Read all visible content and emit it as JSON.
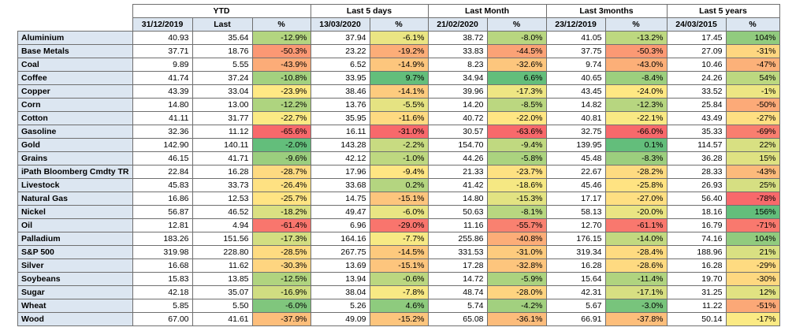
{
  "groups": [
    "YTD",
    "Last 5 days",
    "Last Month",
    "Last 3months",
    "Last 5 years"
  ],
  "subheaders": [
    "31/12/2019",
    "Last",
    "%",
    "13/03/2020",
    "%",
    "21/02/2020",
    "%",
    "23/12/2019",
    "%",
    "24/03/2015",
    "%"
  ],
  "rows": [
    {
      "name": "Aluminium",
      "ytd_base": "40.93",
      "last": "35.64",
      "ytd_pct": "-12.9%",
      "d5_base": "37.94",
      "d5_pct": "-6.1%",
      "m_base": "38.72",
      "m_pct": "-8.0%",
      "m3_base": "41.05",
      "m3_pct": "-13.2%",
      "y5_base": "17.45",
      "y5_pct": "104%"
    },
    {
      "name": "Base Metals",
      "ytd_base": "37.71",
      "last": "18.76",
      "ytd_pct": "-50.3%",
      "d5_base": "23.22",
      "d5_pct": "-19.2%",
      "m_base": "33.83",
      "m_pct": "-44.5%",
      "m3_base": "37.75",
      "m3_pct": "-50.3%",
      "y5_base": "27.09",
      "y5_pct": "-31%"
    },
    {
      "name": "Coal",
      "ytd_base": "9.89",
      "last": "5.55",
      "ytd_pct": "-43.9%",
      "d5_base": "6.52",
      "d5_pct": "-14.9%",
      "m_base": "8.23",
      "m_pct": "-32.6%",
      "m3_base": "9.74",
      "m3_pct": "-43.0%",
      "y5_base": "10.46",
      "y5_pct": "-47%"
    },
    {
      "name": "Coffee",
      "ytd_base": "41.74",
      "last": "37.24",
      "ytd_pct": "-10.8%",
      "d5_base": "33.95",
      "d5_pct": "9.7%",
      "m_base": "34.94",
      "m_pct": "6.6%",
      "m3_base": "40.65",
      "m3_pct": "-8.4%",
      "y5_base": "24.26",
      "y5_pct": "54%"
    },
    {
      "name": "Copper",
      "ytd_base": "43.39",
      "last": "33.04",
      "ytd_pct": "-23.9%",
      "d5_base": "38.46",
      "d5_pct": "-14.1%",
      "m_base": "39.96",
      "m_pct": "-17.3%",
      "m3_base": "43.45",
      "m3_pct": "-24.0%",
      "y5_base": "33.52",
      "y5_pct": "-1%"
    },
    {
      "name": "Corn",
      "ytd_base": "14.80",
      "last": "13.00",
      "ytd_pct": "-12.2%",
      "d5_base": "13.76",
      "d5_pct": "-5.5%",
      "m_base": "14.20",
      "m_pct": "-8.5%",
      "m3_base": "14.82",
      "m3_pct": "-12.3%",
      "y5_base": "25.84",
      "y5_pct": "-50%"
    },
    {
      "name": "Cotton",
      "ytd_base": "41.11",
      "last": "31.77",
      "ytd_pct": "-22.7%",
      "d5_base": "35.95",
      "d5_pct": "-11.6%",
      "m_base": "40.72",
      "m_pct": "-22.0%",
      "m3_base": "40.81",
      "m3_pct": "-22.1%",
      "y5_base": "43.49",
      "y5_pct": "-27%"
    },
    {
      "name": "Gasoline",
      "ytd_base": "32.36",
      "last": "11.12",
      "ytd_pct": "-65.6%",
      "d5_base": "16.11",
      "d5_pct": "-31.0%",
      "m_base": "30.57",
      "m_pct": "-63.6%",
      "m3_base": "32.75",
      "m3_pct": "-66.0%",
      "y5_base": "35.33",
      "y5_pct": "-69%"
    },
    {
      "name": "Gold",
      "ytd_base": "142.90",
      "last": "140.11",
      "ytd_pct": "-2.0%",
      "d5_base": "143.28",
      "d5_pct": "-2.2%",
      "m_base": "154.70",
      "m_pct": "-9.4%",
      "m3_base": "139.95",
      "m3_pct": "0.1%",
      "y5_base": "114.57",
      "y5_pct": "22%"
    },
    {
      "name": "Grains",
      "ytd_base": "46.15",
      "last": "41.71",
      "ytd_pct": "-9.6%",
      "d5_base": "42.12",
      "d5_pct": "-1.0%",
      "m_base": "44.26",
      "m_pct": "-5.8%",
      "m3_base": "45.48",
      "m3_pct": "-8.3%",
      "y5_base": "36.28",
      "y5_pct": "15%"
    },
    {
      "name": "iPath Bloomberg Cmdty TR",
      "ytd_base": "22.84",
      "last": "16.28",
      "ytd_pct": "-28.7%",
      "d5_base": "17.96",
      "d5_pct": "-9.4%",
      "m_base": "21.33",
      "m_pct": "-23.7%",
      "m3_base": "22.67",
      "m3_pct": "-28.2%",
      "y5_base": "28.33",
      "y5_pct": "-43%"
    },
    {
      "name": "Livestock",
      "ytd_base": "45.83",
      "last": "33.73",
      "ytd_pct": "-26.4%",
      "d5_base": "33.68",
      "d5_pct": "0.2%",
      "m_base": "41.42",
      "m_pct": "-18.6%",
      "m3_base": "45.46",
      "m3_pct": "-25.8%",
      "y5_base": "26.93",
      "y5_pct": "25%"
    },
    {
      "name": "Natural Gas",
      "ytd_base": "16.86",
      "last": "12.53",
      "ytd_pct": "-25.7%",
      "d5_base": "14.75",
      "d5_pct": "-15.1%",
      "m_base": "14.80",
      "m_pct": "-15.3%",
      "m3_base": "17.17",
      "m3_pct": "-27.0%",
      "y5_base": "56.40",
      "y5_pct": "-78%"
    },
    {
      "name": "Nickel",
      "ytd_base": "56.87",
      "last": "46.52",
      "ytd_pct": "-18.2%",
      "d5_base": "49.47",
      "d5_pct": "-6.0%",
      "m_base": "50.63",
      "m_pct": "-8.1%",
      "m3_base": "58.13",
      "m3_pct": "-20.0%",
      "y5_base": "18.16",
      "y5_pct": "156%"
    },
    {
      "name": "Oil",
      "ytd_base": "12.81",
      "last": "4.94",
      "ytd_pct": "-61.4%",
      "d5_base": "6.96",
      "d5_pct": "-29.0%",
      "m_base": "11.16",
      "m_pct": "-55.7%",
      "m3_base": "12.70",
      "m3_pct": "-61.1%",
      "y5_base": "16.79",
      "y5_pct": "-71%"
    },
    {
      "name": "Palladium",
      "ytd_base": "183.26",
      "last": "151.56",
      "ytd_pct": "-17.3%",
      "d5_base": "164.16",
      "d5_pct": "-7.7%",
      "m_base": "255.86",
      "m_pct": "-40.8%",
      "m3_base": "176.15",
      "m3_pct": "-14.0%",
      "y5_base": "74.16",
      "y5_pct": "104%"
    },
    {
      "name": "S&P 500",
      "ytd_base": "319.98",
      "last": "228.80",
      "ytd_pct": "-28.5%",
      "d5_base": "267.75",
      "d5_pct": "-14.5%",
      "m_base": "331.53",
      "m_pct": "-31.0%",
      "m3_base": "319.34",
      "m3_pct": "-28.4%",
      "y5_base": "188.96",
      "y5_pct": "21%"
    },
    {
      "name": "Silver",
      "ytd_base": "16.68",
      "last": "11.62",
      "ytd_pct": "-30.3%",
      "d5_base": "13.69",
      "d5_pct": "-15.1%",
      "m_base": "17.28",
      "m_pct": "-32.8%",
      "m3_base": "16.28",
      "m3_pct": "-28.6%",
      "y5_base": "16.28",
      "y5_pct": "-29%"
    },
    {
      "name": "Soybeans",
      "ytd_base": "15.83",
      "last": "13.85",
      "ytd_pct": "-12.5%",
      "d5_base": "13.94",
      "d5_pct": "-0.6%",
      "m_base": "14.72",
      "m_pct": "-5.9%",
      "m3_base": "15.64",
      "m3_pct": "-11.4%",
      "y5_base": "19.70",
      "y5_pct": "-30%"
    },
    {
      "name": "Sugar",
      "ytd_base": "42.18",
      "last": "35.07",
      "ytd_pct": "-16.9%",
      "d5_base": "38.04",
      "d5_pct": "-7.8%",
      "m_base": "48.74",
      "m_pct": "-28.0%",
      "m3_base": "42.31",
      "m3_pct": "-17.1%",
      "y5_base": "31.25",
      "y5_pct": "12%"
    },
    {
      "name": "Wheat",
      "ytd_base": "5.85",
      "last": "5.50",
      "ytd_pct": "-6.0%",
      "d5_base": "5.26",
      "d5_pct": "4.6%",
      "m_base": "5.74",
      "m_pct": "-4.2%",
      "m3_base": "5.67",
      "m3_pct": "-3.0%",
      "y5_base": "11.22",
      "y5_pct": "-51%"
    },
    {
      "name": "Wood",
      "ytd_base": "67.00",
      "last": "41.61",
      "ytd_pct": "-37.9%",
      "d5_base": "49.09",
      "d5_pct": "-15.2%",
      "m_base": "65.08",
      "m_pct": "-36.1%",
      "m3_base": "66.91",
      "m3_pct": "-37.8%",
      "y5_base": "50.14",
      "y5_pct": "-17%"
    }
  ],
  "color_scale": {
    "low": "#f8696b",
    "mid": "#ffeb84",
    "high": "#63be7b"
  }
}
